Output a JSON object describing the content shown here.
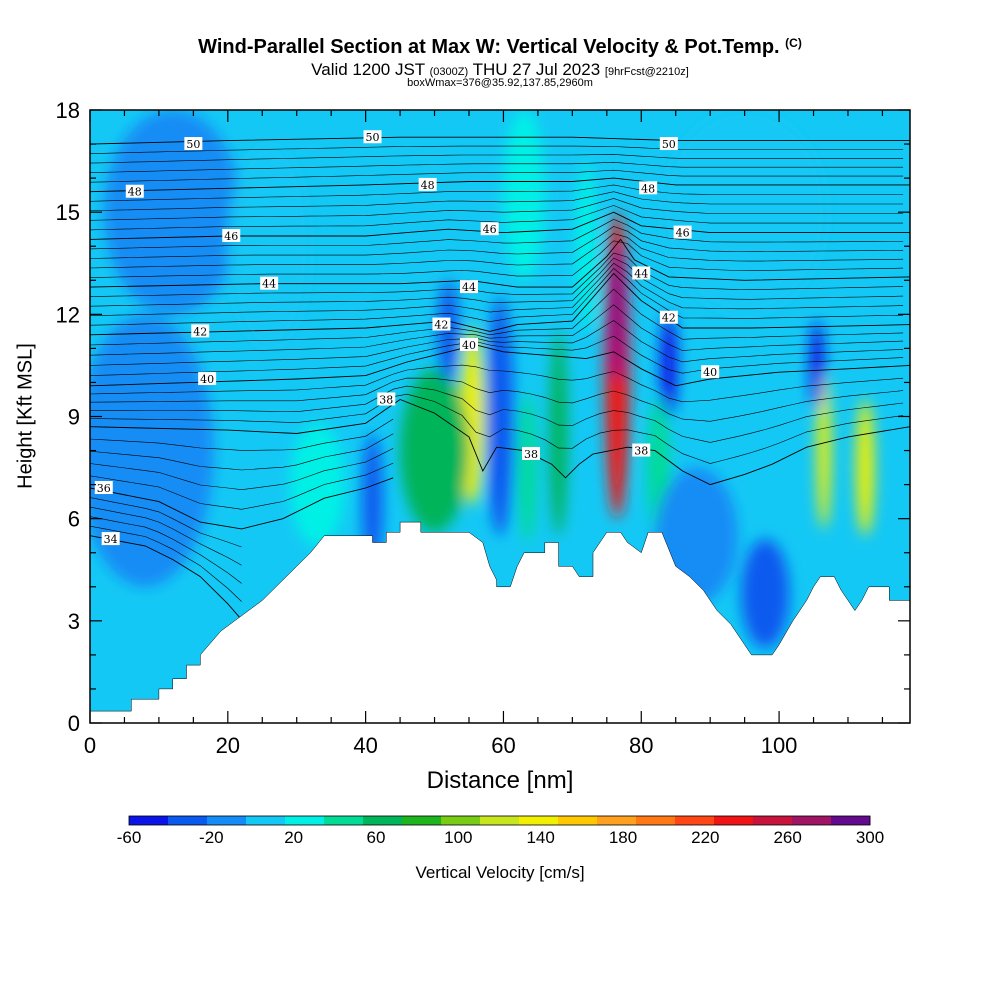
{
  "title": {
    "main": "Wind-Parallel Section at Max W: Vertical Velocity & Pot.Temp.",
    "copyright": "(C)",
    "sub_valid": "Valid 1200 JST",
    "sub_utc": "(0300Z)",
    "sub_date": "THU 27 Jul 2023",
    "sub_fcst": "[9hrFcst@2210z]",
    "boxwmax": "boxWmax=376@35.92,137.85,2960m"
  },
  "chart_data": {
    "type": "heatmap",
    "title": "Wind-Parallel Section at Max W: Vertical Velocity & Pot.Temp.",
    "xlabel": "Distance [nm]",
    "ylabel": "Height [Kft MSL]",
    "xlim": [
      0,
      119
    ],
    "ylim": [
      0,
      18
    ],
    "xticks": [
      "0",
      "20",
      "40",
      "60",
      "80",
      "100"
    ],
    "yticks": [
      "0",
      "3",
      "6",
      "9",
      "12",
      "15",
      "18"
    ],
    "colorbar": {
      "label": "Vertical Velocity [cm/s]",
      "min": -60,
      "max": 300,
      "step": 20,
      "tick_labels": [
        "-60",
        "-20",
        "20",
        "60",
        "100",
        "140",
        "180",
        "220",
        "260",
        "300"
      ],
      "colors": [
        "#0a14e6",
        "#0a5aef",
        "#148cf5",
        "#14c8f5",
        "#00f0e6",
        "#00dc96",
        "#00b45a",
        "#1eb41e",
        "#78cd14",
        "#c8e61e",
        "#f0f000",
        "#ffc800",
        "#ffa01e",
        "#ff7814",
        "#ff4614",
        "#f01414",
        "#c8143c",
        "#a01464",
        "#640a8c"
      ]
    },
    "background_value": 0,
    "terrain": [
      [
        0,
        0.35
      ],
      [
        6,
        0.35
      ],
      [
        6,
        0.7
      ],
      [
        10,
        0.7
      ],
      [
        10,
        1.0
      ],
      [
        12,
        1.0
      ],
      [
        12,
        1.3
      ],
      [
        14,
        1.3
      ],
      [
        14,
        1.7
      ],
      [
        16,
        1.7
      ],
      [
        16,
        2.0
      ],
      [
        19,
        2.7
      ],
      [
        21,
        3.0
      ],
      [
        25,
        3.6
      ],
      [
        28,
        4.2
      ],
      [
        30,
        4.6
      ],
      [
        32,
        5.0
      ],
      [
        34,
        5.5
      ],
      [
        41,
        5.5
      ],
      [
        41,
        5.3
      ],
      [
        43,
        5.3
      ],
      [
        43,
        5.6
      ],
      [
        45,
        5.6
      ],
      [
        45,
        5.9
      ],
      [
        48,
        5.9
      ],
      [
        48,
        5.6
      ],
      [
        55,
        5.6
      ],
      [
        57,
        5.3
      ],
      [
        58,
        4.6
      ],
      [
        59,
        4.2
      ],
      [
        59,
        4.0
      ],
      [
        61,
        4.0
      ],
      [
        62,
        4.6
      ],
      [
        63,
        5.0
      ],
      [
        66,
        5.0
      ],
      [
        66,
        5.3
      ],
      [
        68,
        5.3
      ],
      [
        68,
        4.6
      ],
      [
        70,
        4.6
      ],
      [
        71,
        4.3
      ],
      [
        73,
        4.3
      ],
      [
        73,
        5.0
      ],
      [
        74,
        5.3
      ],
      [
        75,
        5.6
      ],
      [
        77,
        5.6
      ],
      [
        78,
        5.3
      ],
      [
        80,
        5.0
      ],
      [
        81,
        5.6
      ],
      [
        83,
        5.6
      ],
      [
        85,
        4.6
      ],
      [
        87,
        4.3
      ],
      [
        89,
        3.9
      ],
      [
        91,
        3.3
      ],
      [
        93,
        2.9
      ],
      [
        95,
        2.3
      ],
      [
        96,
        2.0
      ],
      [
        99,
        2.0
      ],
      [
        100,
        2.3
      ],
      [
        102,
        3.0
      ],
      [
        104,
        3.6
      ],
      [
        105,
        4.0
      ],
      [
        106,
        4.3
      ],
      [
        108,
        4.3
      ],
      [
        109,
        3.9
      ],
      [
        110,
        3.6
      ],
      [
        111,
        3.3
      ],
      [
        112,
        3.6
      ],
      [
        113,
        4.0
      ],
      [
        116,
        4.0
      ],
      [
        116,
        3.6
      ],
      [
        119,
        3.6
      ],
      [
        119,
        0
      ],
      [
        0,
        0
      ]
    ],
    "velocity_cells": [
      {
        "x": 76.5,
        "y": 10.5,
        "rx": 1.8,
        "ry": 4.5,
        "value": 240
      },
      {
        "x": 76.5,
        "y": 12.0,
        "rx": 0.9,
        "ry": 2.0,
        "value": 300
      },
      {
        "x": 55.5,
        "y": 9.0,
        "rx": 1.7,
        "ry": 2.6,
        "value": 140
      },
      {
        "x": 106.5,
        "y": 8.0,
        "rx": 1.0,
        "ry": 2.3,
        "value": 140
      },
      {
        "x": 112.5,
        "y": 7.5,
        "rx": 1.3,
        "ry": 2.0,
        "value": 140
      },
      {
        "x": 50.0,
        "y": 8.0,
        "rx": 5.0,
        "ry": 2.4,
        "value": 60
      },
      {
        "x": 68.0,
        "y": 8.5,
        "rx": 1.3,
        "ry": 3.0,
        "value": 70
      },
      {
        "x": 63.5,
        "y": 7.5,
        "rx": 1.3,
        "ry": 2.2,
        "value": 50
      },
      {
        "x": 82.5,
        "y": 7.5,
        "rx": 1.6,
        "ry": 2.0,
        "value": 40
      },
      {
        "x": 59.5,
        "y": 9.0,
        "rx": 2.0,
        "ry": 3.5,
        "value": -30
      },
      {
        "x": 52.0,
        "y": 11.5,
        "rx": 1.5,
        "ry": 1.5,
        "value": -40
      },
      {
        "x": 84.0,
        "y": 10.5,
        "rx": 1.2,
        "ry": 1.5,
        "value": -60
      },
      {
        "x": 105.5,
        "y": 10.5,
        "rx": 1.0,
        "ry": 1.3,
        "value": -60
      },
      {
        "x": 98.0,
        "y": 3.8,
        "rx": 3.5,
        "ry": 1.6,
        "value": -40
      },
      {
        "x": 41.0,
        "y": 6.5,
        "rx": 1.5,
        "ry": 2.0,
        "value": -30
      },
      {
        "x": 12.0,
        "y": 15.0,
        "rx": 10.0,
        "ry": 3.0,
        "value": -10
      },
      {
        "x": 8.0,
        "y": 8.0,
        "rx": 10.0,
        "ry": 4.0,
        "value": -10
      },
      {
        "x": 88.0,
        "y": 5.5,
        "rx": 6.0,
        "ry": 2.0,
        "value": -20
      },
      {
        "x": 26.0,
        "y": 14.0,
        "rx": 6.0,
        "ry": 3.0,
        "value": 10
      },
      {
        "x": 33.0,
        "y": 7.0,
        "rx": 4.0,
        "ry": 1.8,
        "value": 20
      },
      {
        "x": 95.0,
        "y": 15.0,
        "rx": 12.0,
        "ry": 3.0,
        "value": 10
      },
      {
        "x": 63.0,
        "y": 15.5,
        "rx": 3.0,
        "ry": 2.5,
        "value": 20
      },
      {
        "x": 72.0,
        "y": 14.0,
        "rx": 1.5,
        "ry": 2.5,
        "value": 30
      }
    ],
    "isentropes": [
      {
        "theta": 34,
        "label": true,
        "points": [
          [
            0,
            5.5
          ],
          [
            8,
            5.2
          ],
          [
            12,
            4.8
          ],
          [
            16,
            4.3
          ],
          [
            20,
            3.5
          ],
          [
            23,
            2.8
          ]
        ]
      },
      {
        "theta": 36,
        "label": true,
        "points": [
          [
            0,
            6.9
          ],
          [
            10,
            6.5
          ],
          [
            16,
            5.9
          ],
          [
            22,
            5.7
          ],
          [
            28,
            6.0
          ],
          [
            34,
            6.6
          ],
          [
            40,
            6.9
          ],
          [
            44,
            7.2
          ]
        ]
      },
      {
        "theta": 38,
        "label": true,
        "points": [
          [
            0,
            8.7
          ],
          [
            20,
            8.6
          ],
          [
            30,
            8.5
          ],
          [
            40,
            8.8
          ],
          [
            45,
            9.5
          ],
          [
            50,
            9.1
          ],
          [
            55,
            8.4
          ],
          [
            57,
            7.4
          ],
          [
            59,
            8.1
          ],
          [
            63,
            8.0
          ],
          [
            67,
            7.6
          ],
          [
            69,
            7.2
          ],
          [
            71,
            7.6
          ],
          [
            73,
            7.9
          ],
          [
            78,
            8.1
          ],
          [
            82,
            8.0
          ],
          [
            86,
            7.4
          ],
          [
            90,
            7.0
          ],
          [
            95,
            7.3
          ],
          [
            99,
            7.6
          ],
          [
            104,
            8.1
          ],
          [
            110,
            8.4
          ],
          [
            119,
            8.7
          ]
        ]
      },
      {
        "theta": 40,
        "label": true,
        "points": [
          [
            0,
            9.9
          ],
          [
            15,
            10.0
          ],
          [
            30,
            10.1
          ],
          [
            40,
            10.2
          ],
          [
            46,
            10.6
          ],
          [
            52,
            10.9
          ],
          [
            56,
            11.1
          ],
          [
            60,
            10.9
          ],
          [
            66,
            10.8
          ],
          [
            72,
            10.7
          ],
          [
            76,
            10.9
          ],
          [
            80,
            10.4
          ],
          [
            85,
            9.9
          ],
          [
            90,
            10.1
          ],
          [
            100,
            10.3
          ],
          [
            110,
            10.4
          ],
          [
            119,
            10.5
          ]
        ]
      },
      {
        "theta": 42,
        "label": true,
        "points": [
          [
            0,
            11.4
          ],
          [
            20,
            11.5
          ],
          [
            40,
            11.6
          ],
          [
            52,
            11.8
          ],
          [
            58,
            11.5
          ],
          [
            62,
            11.7
          ],
          [
            70,
            11.8
          ],
          [
            76,
            13.2
          ],
          [
            80,
            12.4
          ],
          [
            86,
            11.6
          ],
          [
            96,
            11.6
          ],
          [
            119,
            11.7
          ]
        ]
      },
      {
        "theta": 44,
        "label": true,
        "points": [
          [
            0,
            12.8
          ],
          [
            25,
            12.9
          ],
          [
            45,
            12.9
          ],
          [
            55,
            13.0
          ],
          [
            62,
            12.8
          ],
          [
            70,
            12.8
          ],
          [
            75,
            13.7
          ],
          [
            77,
            14.2
          ],
          [
            79,
            13.6
          ],
          [
            84,
            13.1
          ],
          [
            95,
            13.0
          ],
          [
            119,
            13.1
          ]
        ]
      },
      {
        "theta": 46,
        "label": true,
        "points": [
          [
            0,
            14.2
          ],
          [
            20,
            14.3
          ],
          [
            40,
            14.3
          ],
          [
            52,
            14.5
          ],
          [
            60,
            14.4
          ],
          [
            70,
            14.5
          ],
          [
            76,
            15.0
          ],
          [
            80,
            14.6
          ],
          [
            90,
            14.4
          ],
          [
            119,
            14.4
          ]
        ]
      },
      {
        "theta": 48,
        "label": true,
        "points": [
          [
            0,
            15.6
          ],
          [
            20,
            15.7
          ],
          [
            40,
            15.8
          ],
          [
            55,
            15.9
          ],
          [
            70,
            15.9
          ],
          [
            76,
            16.0
          ],
          [
            85,
            15.8
          ],
          [
            119,
            15.8
          ]
        ]
      },
      {
        "theta": 50,
        "label": true,
        "points": [
          [
            0,
            17.0
          ],
          [
            20,
            17.1
          ],
          [
            45,
            17.2
          ],
          [
            60,
            17.2
          ],
          [
            70,
            17.2
          ],
          [
            85,
            17.1
          ],
          [
            119,
            17.1
          ]
        ]
      }
    ],
    "contour_labels": [
      {
        "text": "50",
        "x": 15,
        "y": 17.0
      },
      {
        "text": "50",
        "x": 41,
        "y": 17.2
      },
      {
        "text": "50",
        "x": 84,
        "y": 17.0
      },
      {
        "text": "48",
        "x": 6.5,
        "y": 15.6
      },
      {
        "text": "48",
        "x": 49,
        "y": 15.8
      },
      {
        "text": "48",
        "x": 81,
        "y": 15.7
      },
      {
        "text": "46",
        "x": 20.5,
        "y": 14.3
      },
      {
        "text": "46",
        "x": 58,
        "y": 14.5
      },
      {
        "text": "46",
        "x": 86,
        "y": 14.4
      },
      {
        "text": "44",
        "x": 26,
        "y": 12.9
      },
      {
        "text": "44",
        "x": 55,
        "y": 12.8
      },
      {
        "text": "44",
        "x": 80,
        "y": 13.2
      },
      {
        "text": "42",
        "x": 16,
        "y": 11.5
      },
      {
        "text": "42",
        "x": 51,
        "y": 11.7
      },
      {
        "text": "42",
        "x": 84,
        "y": 11.9
      },
      {
        "text": "40",
        "x": 17,
        "y": 10.1
      },
      {
        "text": "40",
        "x": 55,
        "y": 11.1
      },
      {
        "text": "40",
        "x": 90,
        "y": 10.3
      },
      {
        "text": "38",
        "x": 43,
        "y": 9.5
      },
      {
        "text": "38",
        "x": 64,
        "y": 7.9
      },
      {
        "text": "38",
        "x": 80,
        "y": 8.0
      },
      {
        "text": "36",
        "x": 2,
        "y": 6.9
      },
      {
        "text": "34",
        "x": 3,
        "y": 5.4
      }
    ]
  }
}
